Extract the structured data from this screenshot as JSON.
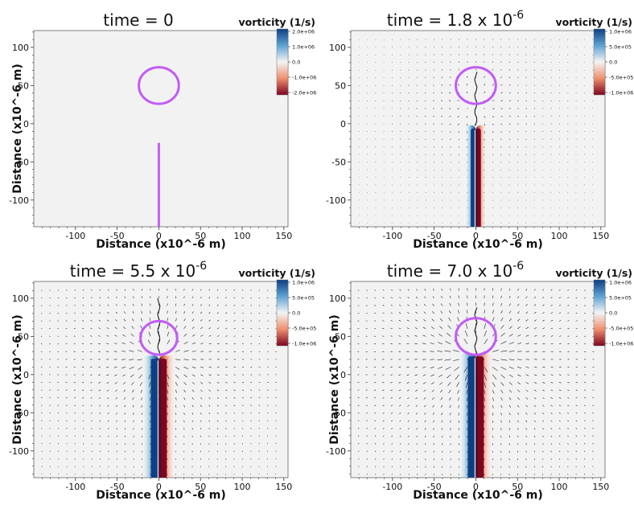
{
  "chart_data": [
    {
      "type": "heatmap",
      "title": "time = 0",
      "title_exp": "",
      "xlabel": "Distance (x10^-6 m)",
      "ylabel": "Distance (x10^-6 m)",
      "xlim": [
        -150,
        155
      ],
      "ylim": [
        -135,
        122
      ],
      "xticks": [
        "-100",
        "-50",
        "0",
        "50",
        "100",
        "150"
      ],
      "yticks": [
        "100",
        "50",
        "0",
        "-50",
        "-100"
      ],
      "colorbar": {
        "title": "vorticity (1/s)",
        "ticks": [
          "2.0e+06",
          "1.0e+06",
          "0.0",
          "-1.0e+06",
          "-2.0e+06"
        ]
      },
      "bubble": {
        "cx": 0,
        "cy": 50,
        "r": 24
      },
      "needle": {
        "x": 0,
        "y_top": -25,
        "y_bottom": -135
      },
      "vortex_strength": 0,
      "plume_top": -25,
      "jet_tip": null,
      "arrow_scale": 0
    },
    {
      "type": "heatmap",
      "title": "time = 1.8 x 10",
      "title_exp": "-6",
      "xlabel": "Distance (x10^-6 m)",
      "ylabel": "",
      "xlim": [
        -150,
        155
      ],
      "ylim": [
        -135,
        122
      ],
      "xticks": [
        "-100",
        "-50",
        "0",
        "50",
        "100",
        "150"
      ],
      "yticks": [
        "100",
        "50",
        "0",
        "-50",
        "-100"
      ],
      "colorbar": {
        "title": "vorticity (1/s)",
        "ticks": [
          "1.0e+06",
          "5.0e+05",
          "0.0",
          "-5.0e+05",
          "-1.0e+06"
        ]
      },
      "bubble": {
        "cx": 0,
        "cy": 50,
        "r": 24
      },
      "needle": null,
      "vortex_strength": 1,
      "plume_top": -2,
      "jet_tip": 72,
      "arrow_scale": 0.4
    },
    {
      "type": "heatmap",
      "title": "time = 5.5 x 10",
      "title_exp": "-6",
      "xlabel": "Distance (x10^-6 m)",
      "ylabel": "Distance (x10^-6 m)",
      "xlim": [
        -150,
        155
      ],
      "ylim": [
        -135,
        122
      ],
      "xticks": [
        "-100",
        "-50",
        "0",
        "50",
        "100",
        "150"
      ],
      "yticks": [
        "100",
        "50",
        "0",
        "-50",
        "-100"
      ],
      "colorbar": {
        "title": "vorticity (1/s)",
        "ticks": [
          "1.0e+06",
          "5.0e+05",
          "0.0",
          "-5.0e+05",
          "-1.0e+06"
        ]
      },
      "bubble": {
        "cx": 0,
        "cy": 48,
        "r": 22
      },
      "needle": null,
      "vortex_strength": 1,
      "plume_top": 25,
      "jet_tip": 103,
      "arrow_scale": 1
    },
    {
      "type": "heatmap",
      "title": "time = 7.0 x 10",
      "title_exp": "-6",
      "xlabel": "Distance (x10^-6 m)",
      "ylabel": "Distance (x10^-6 m)",
      "xlim": [
        -150,
        155
      ],
      "ylim": [
        -135,
        122
      ],
      "xticks": [
        "-100",
        "-50",
        "0",
        "50",
        "100",
        "150"
      ],
      "yticks": [
        "100",
        "50",
        "0",
        "-50",
        "-100"
      ],
      "colorbar": {
        "title": "vorticity (1/s)",
        "ticks": [
          "1.0e+06",
          "5.0e+05",
          "0.0",
          "-5.0e+05",
          "-1.0e+06"
        ]
      },
      "bubble": {
        "cx": 0,
        "cy": 50,
        "r": 24
      },
      "needle": null,
      "vortex_strength": 1,
      "plume_top": 28,
      "jet_tip": 90,
      "arrow_scale": 1.3
    }
  ],
  "colors": {
    "background_field": "#f2f2f2",
    "bubble": "#c25cf5",
    "needle": "#c061f5",
    "positive_vorticity": "#0d3f82",
    "negative_vorticity": "#7e0420",
    "arrows": "#222222"
  }
}
